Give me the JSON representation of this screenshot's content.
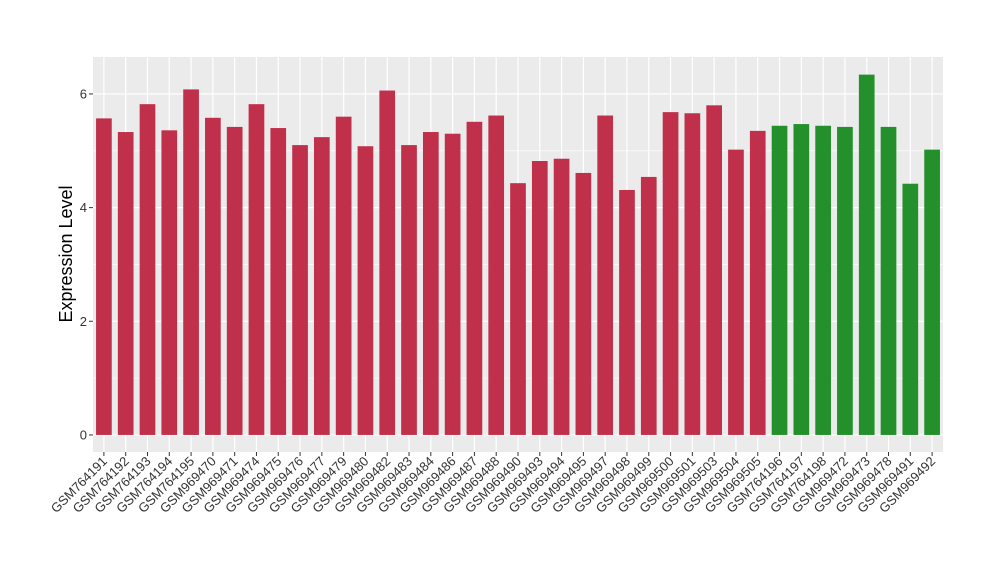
{
  "chart_data": {
    "type": "bar",
    "title": "",
    "xlabel": "",
    "ylabel": "Expression Level",
    "ylim": [
      -0.3,
      6.65
    ],
    "yticks": [
      0,
      2,
      4,
      6
    ],
    "grid": true,
    "background": "#ebebeb",
    "grid_color": "#ffffff",
    "colors": {
      "group_a": "#c0304a",
      "group_b": "#23902b"
    },
    "categories": [
      "GSM764191",
      "GSM764192",
      "GSM764193",
      "GSM764194",
      "GSM764195",
      "GSM969470",
      "GSM969471",
      "GSM969474",
      "GSM969475",
      "GSM969476",
      "GSM969477",
      "GSM969479",
      "GSM969480",
      "GSM969482",
      "GSM969483",
      "GSM969484",
      "GSM969486",
      "GSM969487",
      "GSM969488",
      "GSM969490",
      "GSM969493",
      "GSM969494",
      "GSM969495",
      "GSM969497",
      "GSM969498",
      "GSM969499",
      "GSM969500",
      "GSM969501",
      "GSM969503",
      "GSM969504",
      "GSM969505",
      "GSM764196",
      "GSM764197",
      "GSM764198",
      "GSM969472",
      "GSM969473",
      "GSM969478",
      "GSM969491",
      "GSM969492"
    ],
    "values": [
      5.57,
      5.33,
      5.82,
      5.36,
      6.08,
      5.58,
      5.42,
      5.82,
      5.4,
      5.1,
      5.24,
      5.6,
      5.08,
      6.06,
      5.1,
      5.33,
      5.3,
      5.51,
      5.62,
      4.43,
      4.82,
      4.86,
      4.61,
      5.62,
      4.31,
      4.54,
      5.68,
      5.66,
      5.8,
      5.02,
      5.35,
      5.44,
      5.47,
      5.44,
      5.42,
      6.34,
      5.42,
      4.42,
      5.02
    ],
    "groups": [
      "a",
      "a",
      "a",
      "a",
      "a",
      "a",
      "a",
      "a",
      "a",
      "a",
      "a",
      "a",
      "a",
      "a",
      "a",
      "a",
      "a",
      "a",
      "a",
      "a",
      "a",
      "a",
      "a",
      "a",
      "a",
      "a",
      "a",
      "a",
      "a",
      "a",
      "a",
      "b",
      "b",
      "b",
      "b",
      "b",
      "b",
      "b",
      "b"
    ]
  }
}
